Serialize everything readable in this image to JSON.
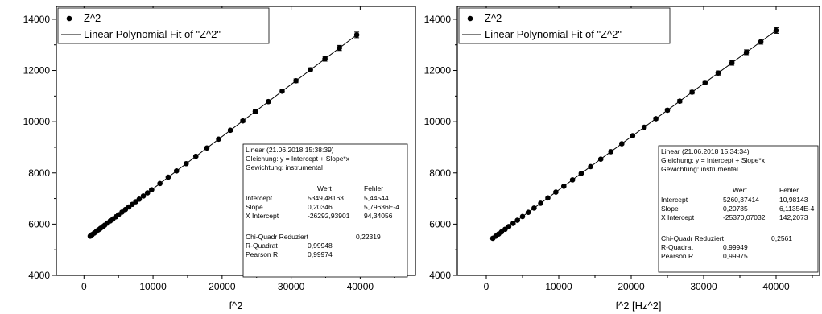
{
  "chart_data": [
    {
      "type": "scatter",
      "xlabel": "f^2",
      "ylabel": "",
      "xlim": [
        -4000,
        48000
      ],
      "ylim": [
        4000,
        14500
      ],
      "xticks": [
        0,
        10000,
        20000,
        30000,
        40000
      ],
      "yticks": [
        4000,
        6000,
        8000,
        10000,
        12000,
        14000
      ],
      "xtick_labels": [
        "0",
        "10000",
        "20000",
        "30000",
        "40000"
      ],
      "ytick_labels": [
        "4000",
        "6000",
        "8000",
        "10000",
        "12000",
        "14000"
      ],
      "grid": false,
      "legend": {
        "placement": "top-left",
        "entries": [
          "Z^2",
          "Linear Polynomial Fit of \"Z^2\""
        ]
      },
      "series": [
        {
          "name": "Z^2",
          "x": [
            900,
            1200,
            1500,
            1800,
            2100,
            2400,
            2700,
            3000,
            3400,
            3800,
            4200,
            4600,
            5000,
            5500,
            6000,
            6500,
            7000,
            7500,
            8000,
            8600,
            9200,
            9800,
            11000,
            12200,
            13400,
            14800,
            16200,
            17800,
            19500,
            21200,
            23000,
            24800,
            26700,
            28700,
            30700,
            32800,
            34900,
            37000,
            39500
          ],
          "y": [
            5532,
            5595,
            5655,
            5716,
            5777,
            5838,
            5899,
            5960,
            6041,
            6123,
            6204,
            6286,
            6367,
            6469,
            6571,
            6672,
            6774,
            6876,
            6977,
            7100,
            7222,
            7344,
            7588,
            7833,
            8077,
            8362,
            8647,
            8972,
            9318,
            9664,
            10030,
            10396,
            10783,
            11190,
            11597,
            12024,
            12452,
            12879,
            13388
          ],
          "errors": [
            10,
            10,
            10,
            10,
            10,
            10,
            10,
            10,
            10,
            10,
            10,
            10,
            10,
            10,
            15,
            15,
            15,
            15,
            15,
            20,
            20,
            20,
            20,
            25,
            30,
            30,
            35,
            40,
            45,
            50,
            55,
            60,
            60,
            70,
            75,
            80,
            90,
            100,
            110
          ]
        },
        {
          "name": "Linear Polynomial Fit of \"Z^2\"",
          "x": [
            900,
            39500
          ],
          "y": [
            5532.4,
            13388.3
          ]
        }
      ],
      "annotation": {
        "header": [
          "Linear (21.06.2018 15:38:39)",
          "Gleichung: y = Intercept + Slope*x",
          "Gewichtung: instrumental"
        ],
        "col_headers": [
          "Wert",
          "Fehler"
        ],
        "rows": [
          [
            "Intercept",
            "5349,48163",
            "5,44544"
          ],
          [
            "Slope",
            "0,20346",
            "5,79636E-4"
          ],
          [
            "X Intercept",
            "-26292,93901",
            "94,34056"
          ]
        ],
        "stats": [
          [
            "Chi-Quadr Reduziert",
            "0,22319"
          ],
          [
            "R-Quadrat",
            "0,99948"
          ],
          [
            "Pearson R",
            "0,99974"
          ]
        ]
      }
    },
    {
      "type": "scatter",
      "xlabel": "f^2 [Hz^2]",
      "ylabel": "",
      "xlim": [
        -4000,
        46000
      ],
      "ylim": [
        4000,
        14500
      ],
      "xticks": [
        0,
        10000,
        20000,
        30000,
        40000
      ],
      "yticks": [
        4000,
        6000,
        8000,
        10000,
        12000,
        14000
      ],
      "xtick_labels": [
        "0",
        "10000",
        "20000",
        "30000",
        "40000"
      ],
      "ytick_labels": [
        "4000",
        "6000",
        "8000",
        "10000",
        "12000",
        "14000"
      ],
      "grid": false,
      "legend": {
        "placement": "top-left",
        "entries": [
          "Z^2",
          "Linear Polynomial Fit of \"Z^2\""
        ]
      },
      "series": [
        {
          "name": "Z^2",
          "x": [
            900,
            1300,
            1700,
            2100,
            2600,
            3100,
            3700,
            4300,
            5000,
            5800,
            6600,
            7500,
            8500,
            9600,
            10700,
            11900,
            13100,
            14400,
            15800,
            17200,
            18700,
            20200,
            21800,
            23400,
            25000,
            26700,
            28400,
            30200,
            32000,
            33900,
            35900,
            37900,
            40000
          ],
          "y": [
            5447,
            5530,
            5613,
            5696,
            5800,
            5903,
            6028,
            6152,
            6297,
            6463,
            6629,
            6816,
            7023,
            7251,
            7480,
            7729,
            7978,
            8247,
            8538,
            8829,
            9140,
            9451,
            9783,
            10115,
            10448,
            10800,
            11153,
            11527,
            11901,
            12295,
            12710,
            13125,
            13560
          ],
          "errors": [
            10,
            10,
            10,
            10,
            10,
            15,
            15,
            15,
            15,
            20,
            20,
            20,
            20,
            25,
            25,
            30,
            30,
            30,
            35,
            40,
            40,
            45,
            50,
            55,
            60,
            65,
            70,
            75,
            80,
            90,
            95,
            100,
            110
          ]
        },
        {
          "name": "Linear Polynomial Fit of \"Z^2\"",
          "x": [
            900,
            40000
          ],
          "y": [
            5447.2,
            13560.0
          ]
        }
      ],
      "annotation": {
        "header": [
          "Linear (21.06.2018 15:34:34)",
          "Gleichung: y = Intercept + Slope*x",
          "Gewichtung: instrumental"
        ],
        "col_headers": [
          "Wert",
          "Fehler"
        ],
        "rows": [
          [
            "Intercept",
            "5260,37414",
            "10,98143"
          ],
          [
            "Slope",
            "0,20735",
            "6,11354E-4"
          ],
          [
            "X Intercept",
            "-25370,07032",
            "142,2073"
          ]
        ],
        "stats": [
          [
            "Chi-Quadr Reduziert",
            "0,2561"
          ],
          [
            "R-Quadrat",
            "0,99949"
          ],
          [
            "Pearson R",
            "0,99975"
          ]
        ]
      }
    }
  ]
}
